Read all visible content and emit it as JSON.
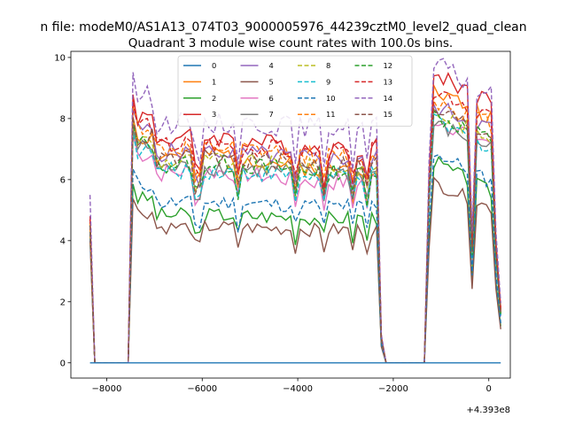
{
  "chart_data": {
    "type": "line",
    "suptitle": "n file: modeM0/AS1A13_074T03_9000005976_44239cztM0_level2_quad_clean",
    "title": "Quadrant 3 module wise count rates with 100.0s bins.",
    "xlabel": "",
    "ylabel": "",
    "x_offset_label": "+4.393e8",
    "xlim": [
      -8750,
      450
    ],
    "ylim": [
      -0.5,
      10.2
    ],
    "xticks": [
      -8000,
      -6000,
      -4000,
      -2000,
      0
    ],
    "xtick_labels": [
      "−8000",
      "−6000",
      "−4000",
      "−2000",
      "0"
    ],
    "yticks": [
      0,
      2,
      4,
      6,
      8,
      10
    ],
    "ytick_labels": [
      "0",
      "2",
      "4",
      "6",
      "8",
      "10"
    ],
    "grid": false,
    "legend_position": "top-center",
    "legend_columns": 4,
    "x_start": -8350,
    "x_step": 100,
    "gaps": [
      [
        -8250,
        -7550
      ],
      [
        -2150,
        -1350
      ]
    ],
    "on_segments": [
      [
        -7450,
        -2250
      ],
      [
        -1250,
        250
      ]
    ],
    "series": [
      {
        "name": "0",
        "color": "#1f77b4",
        "dash": "solid",
        "edge": 0.0,
        "level1": 0.0,
        "level2": 0.0,
        "peak": 0.0,
        "amp": 0.0,
        "seed": 1
      },
      {
        "name": "1",
        "color": "#ff7f0e",
        "dash": "solid",
        "edge": 4.5,
        "level1": 6.6,
        "level2": 7.6,
        "peak": 8.9,
        "amp": 0.3,
        "seed": 2
      },
      {
        "name": "2",
        "color": "#2ca02c",
        "dash": "solid",
        "edge": 4.2,
        "level1": 4.8,
        "level2": 5.0,
        "peak": 6.6,
        "amp": 0.25,
        "seed": 3
      },
      {
        "name": "3",
        "color": "#d62728",
        "dash": "solid",
        "edge": 4.8,
        "level1": 7.2,
        "level2": 8.0,
        "peak": 9.5,
        "amp": 0.3,
        "seed": 4
      },
      {
        "name": "4",
        "color": "#9467bd",
        "dash": "solid",
        "edge": 4.6,
        "level1": 6.8,
        "level2": 7.3,
        "peak": 8.4,
        "amp": 0.3,
        "seed": 5
      },
      {
        "name": "5",
        "color": "#8c564b",
        "dash": "solid",
        "edge": 4.0,
        "level1": 4.4,
        "level2": 4.6,
        "peak": 5.9,
        "amp": 0.22,
        "seed": 6
      },
      {
        "name": "6",
        "color": "#e377c2",
        "dash": "solid",
        "edge": 4.5,
        "level1": 6.1,
        "level2": 6.8,
        "peak": 8.0,
        "amp": 0.3,
        "seed": 7
      },
      {
        "name": "7",
        "color": "#7f7f7f",
        "dash": "solid",
        "edge": 4.4,
        "level1": 6.3,
        "level2": 6.7,
        "peak": 7.8,
        "amp": 0.28,
        "seed": 8
      },
      {
        "name": "8",
        "color": "#bcbd22",
        "dash": "dashed",
        "edge": 4.6,
        "level1": 6.5,
        "level2": 7.0,
        "peak": 8.2,
        "amp": 0.3,
        "seed": 9
      },
      {
        "name": "9",
        "color": "#17becf",
        "dash": "dashed",
        "edge": 4.5,
        "level1": 6.2,
        "level2": 6.6,
        "peak": 7.9,
        "amp": 0.28,
        "seed": 10
      },
      {
        "name": "10",
        "color": "#1f77b4",
        "dash": "dashed",
        "edge": 4.3,
        "level1": 5.2,
        "level2": 5.4,
        "peak": 6.9,
        "amp": 0.25,
        "seed": 11
      },
      {
        "name": "11",
        "color": "#ff7f0e",
        "dash": "dashed",
        "edge": 4.6,
        "level1": 6.9,
        "level2": 7.4,
        "peak": 8.6,
        "amp": 0.3,
        "seed": 12
      },
      {
        "name": "12",
        "color": "#2ca02c",
        "dash": "dashed",
        "edge": 4.5,
        "level1": 6.4,
        "level2": 6.9,
        "peak": 8.1,
        "amp": 0.3,
        "seed": 13
      },
      {
        "name": "13",
        "color": "#d62728",
        "dash": "dashed",
        "edge": 4.7,
        "level1": 7.0,
        "level2": 7.6,
        "peak": 9.0,
        "amp": 0.32,
        "seed": 14
      },
      {
        "name": "14",
        "color": "#9467bd",
        "dash": "dashed",
        "edge": 5.5,
        "level1": 7.8,
        "level2": 8.1,
        "peak": 9.8,
        "amp": 0.35,
        "seed": 15
      },
      {
        "name": "15",
        "color": "#8c564b",
        "dash": "dashed",
        "edge": 4.5,
        "level1": 6.6,
        "level2": 7.0,
        "peak": 8.3,
        "amp": 0.3,
        "seed": 16
      }
    ]
  }
}
